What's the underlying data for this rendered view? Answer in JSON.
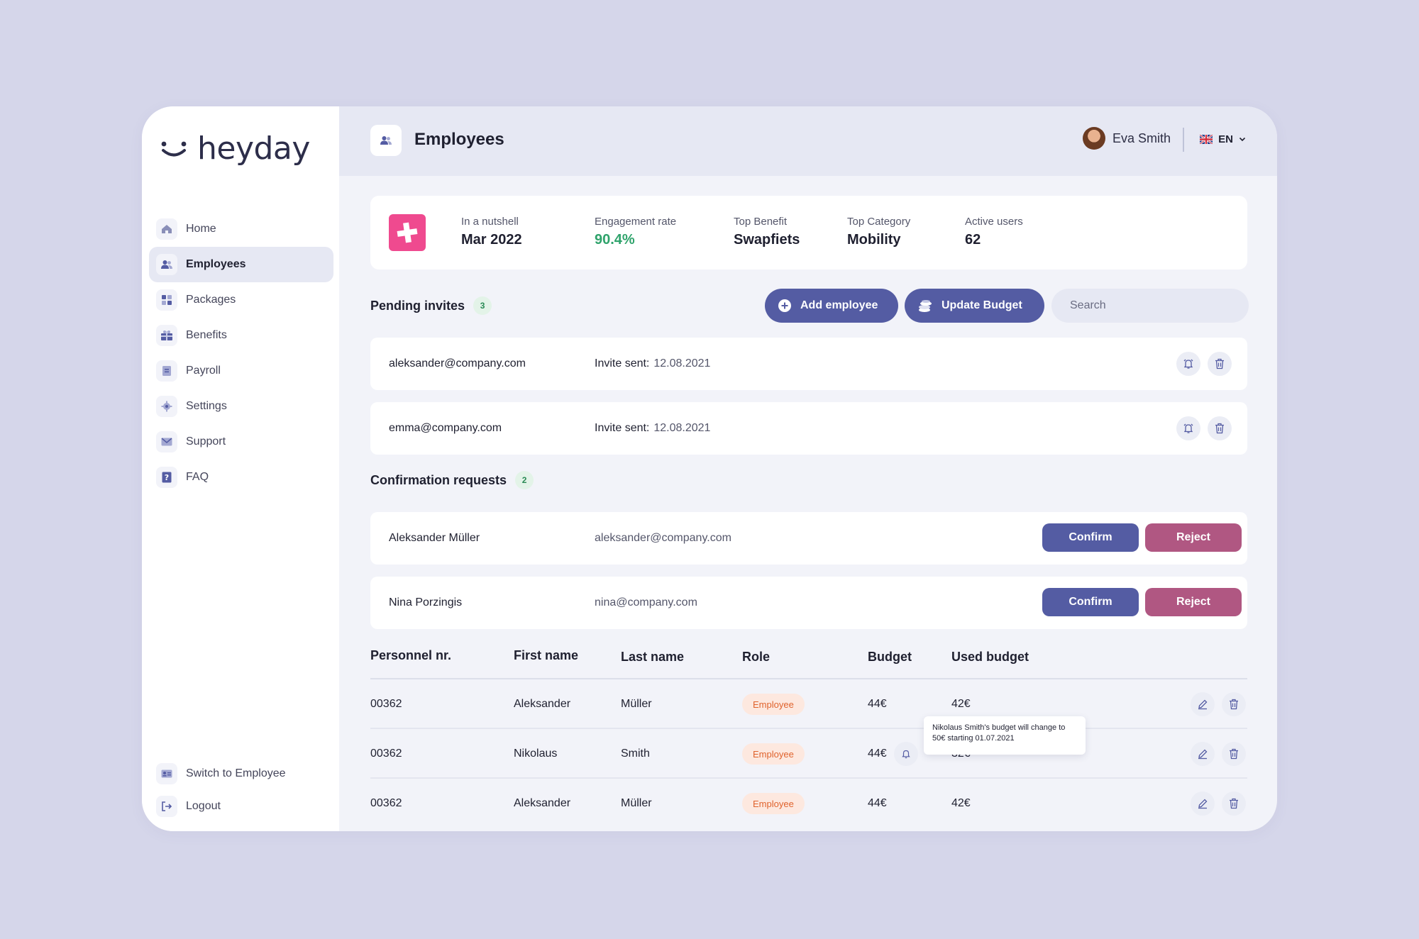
{
  "brand": {
    "name": "heyday"
  },
  "sidebar": {
    "items": [
      {
        "label": "Home",
        "icon": "home-icon"
      },
      {
        "label": "Employees",
        "icon": "users-icon"
      },
      {
        "label": "Packages",
        "icon": "grid-icon"
      },
      {
        "label": "Benefits",
        "icon": "gift-icon"
      },
      {
        "label": "Payroll",
        "icon": "document-icon"
      },
      {
        "label": "Settings",
        "icon": "gear-icon"
      },
      {
        "label": "Support",
        "icon": "mail-icon"
      },
      {
        "label": "FAQ",
        "icon": "question-icon"
      }
    ],
    "active": "Employees",
    "bottom": [
      {
        "label": "Switch to Employee",
        "icon": "id-card-icon"
      },
      {
        "label": "Logout",
        "icon": "logout-icon"
      }
    ]
  },
  "header": {
    "title": "Employees",
    "user_name": "Eva Smith",
    "language": "EN"
  },
  "stats": {
    "nutshell_label": "In a nutshell",
    "nutshell_value": "Mar 2022",
    "engagement_label": "Engagement rate",
    "engagement_value": "90.4%",
    "top_benefit_label": "Top Benefit",
    "top_benefit_value": "Swapfiets",
    "top_category_label": "Top Category",
    "top_category_value": "Mobility",
    "active_users_label": "Active users",
    "active_users_value": "62"
  },
  "pending": {
    "title": "Pending invites",
    "count": "3",
    "invite_label": "Invite sent:",
    "items": [
      {
        "email": "aleksander@company.com",
        "date": "12.08.2021"
      },
      {
        "email": "emma@company.com",
        "date": "12.08.2021"
      }
    ]
  },
  "actions": {
    "add_employee": "Add employee",
    "update_budget": "Update Budget",
    "search_placeholder": "Search"
  },
  "confirmation": {
    "title": "Confirmation requests",
    "count": "2",
    "confirm_label": "Confirm",
    "reject_label": "Reject",
    "items": [
      {
        "name": "Aleksander Müller",
        "email": "aleksander@company.com"
      },
      {
        "name": "Nina Porzingis",
        "email": "nina@company.com"
      }
    ]
  },
  "table": {
    "headers": [
      "Personnel nr.",
      "First name",
      "Last name",
      "Role",
      "Budget",
      "Used budget"
    ],
    "rows": [
      {
        "personnel": "00362",
        "first": "Aleksander",
        "last": "Müller",
        "role": "Employee",
        "budget": "44€",
        "used": "42€"
      },
      {
        "personnel": "00362",
        "first": "Nikolaus",
        "last": "Smith",
        "role": "Employee",
        "budget": "44€",
        "used": "32€"
      },
      {
        "personnel": "00362",
        "first": "Aleksander",
        "last": "Müller",
        "role": "Employee",
        "budget": "44€",
        "used": "42€"
      }
    ],
    "tooltip": "Nikolaus Smith's budget will change to 50€ starting 01.07.2021"
  },
  "colors": {
    "accent": "#545ca3",
    "reject": "#b05782",
    "brand_pink": "#ef4a8f",
    "success": "#2fa36b",
    "background": "#d5d6ea"
  }
}
